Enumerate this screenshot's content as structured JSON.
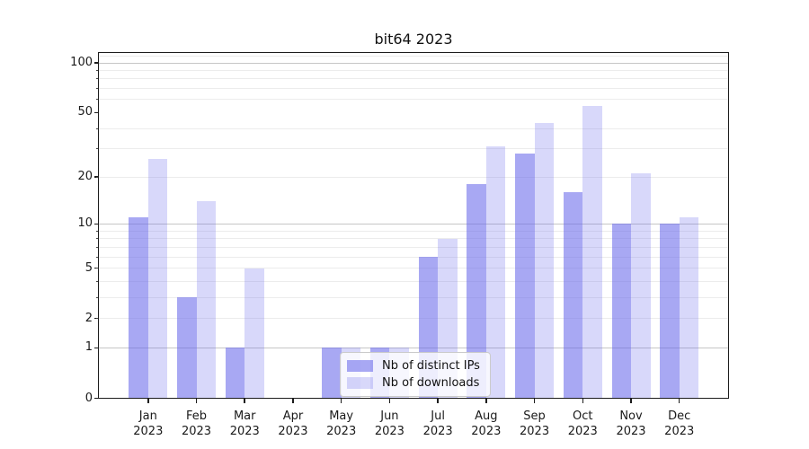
{
  "title": "bit64 2023",
  "legend": {
    "items": [
      {
        "label": "Nb of distinct IPs",
        "series_key": "ips"
      },
      {
        "label": "Nb of downloads",
        "series_key": "downloads"
      }
    ]
  },
  "colors": {
    "ips": "rgba(105,105,235,0.58)",
    "downloads": "rgba(105,105,235,0.26)",
    "grid_major": "#c6c6c6",
    "grid_minor": "#ececec",
    "frame": "#1c1c1c"
  },
  "chart_data": {
    "type": "bar",
    "title": "bit64 2023",
    "categories": [
      "Jan 2023",
      "Feb 2023",
      "Mar 2023",
      "Apr 2023",
      "May 2023",
      "Jun 2023",
      "Jul 2023",
      "Aug 2023",
      "Sep 2023",
      "Oct 2023",
      "Nov 2023",
      "Dec 2023"
    ],
    "series": [
      {
        "name": "Nb of distinct IPs",
        "values": [
          11,
          3,
          1,
          0,
          1,
          1,
          6,
          18,
          28,
          16,
          10,
          10
        ]
      },
      {
        "name": "Nb of downloads",
        "values": [
          26,
          14,
          5,
          0,
          1,
          1,
          8,
          31,
          43,
          55,
          21,
          11
        ]
      }
    ],
    "xlabel": "",
    "ylabel": "",
    "yscale": "log10(value+1)",
    "yticks": [
      0,
      1,
      2,
      5,
      10,
      20,
      50,
      100
    ],
    "ylim": [
      0,
      113
    ],
    "grid": "horizontal major+minor",
    "grid_major_values": [
      1,
      10,
      100
    ],
    "grid_minor_values": [
      2,
      3,
      4,
      5,
      6,
      7,
      8,
      9,
      20,
      30,
      40,
      60,
      70,
      80,
      90,
      110
    ],
    "legend_position": "inside lower-center-left"
  }
}
